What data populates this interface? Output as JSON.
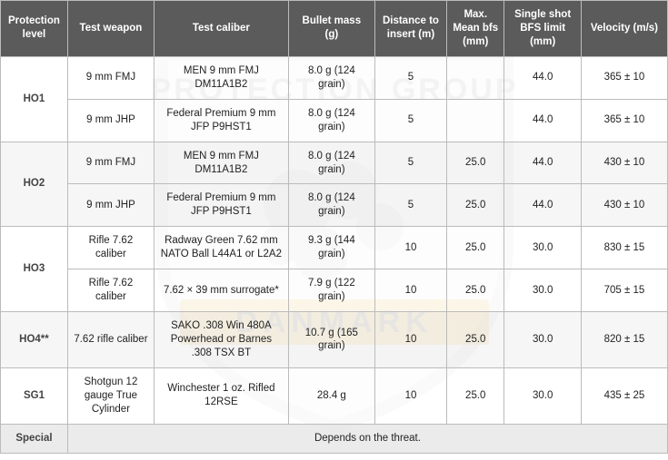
{
  "headers": {
    "protection_level": "Protection level",
    "test_weapon": "Test weapon",
    "test_caliber": "Test caliber",
    "bullet_mass": "Bullet mass (g)",
    "distance": "Distance to insert (m)",
    "max_mean_bfs": "Max. Mean bfs (mm)",
    "single_shot_bfs": "Single shot BFS limit (mm)",
    "velocity": "Velocity (m/s)"
  },
  "rows": [
    {
      "level": "HO1",
      "sub": [
        {
          "weapon": "9 mm FMJ",
          "caliber": "MEN 9 mm FMJ DM11A1B2",
          "mass": "8.0 g (124 grain)",
          "dist": "5",
          "bfs": "",
          "limit": "44.0",
          "vel": "365 ± 10"
        },
        {
          "weapon": "9 mm JHP",
          "caliber": "Federal Premium 9 mm JFP P9HST1",
          "mass": "8.0 g (124 grain)",
          "dist": "5",
          "bfs": "",
          "limit": "44.0",
          "vel": "365 ± 10"
        }
      ]
    },
    {
      "level": "HO2",
      "sub": [
        {
          "weapon": "9 mm FMJ",
          "caliber": "MEN 9 mm FMJ DM11A1B2",
          "mass": "8.0 g (124 grain)",
          "dist": "5",
          "bfs": "25.0",
          "limit": "44.0",
          "vel": "430 ± 10"
        },
        {
          "weapon": "9 mm JHP",
          "caliber": "Federal Premium 9 mm JFP P9HST1",
          "mass": "8.0 g (124 grain)",
          "dist": "5",
          "bfs": "25.0",
          "limit": "44.0",
          "vel": "430 ± 10"
        }
      ]
    },
    {
      "level": "HO3",
      "sub": [
        {
          "weapon": "Rifle 7.62 caliber",
          "caliber": "Radway Green 7.62 mm NATO Ball L44A1 or L2A2",
          "mass": "9.3 g (144 grain)",
          "dist": "10",
          "bfs": "25.0",
          "limit": "30.0",
          "vel": "830 ± 15"
        },
        {
          "weapon": "Rifle 7.62 caliber",
          "caliber": "7.62 × 39 mm surrogate*",
          "mass": "7.9 g (122 grain)",
          "dist": "10",
          "bfs": "25.0",
          "limit": "30.0",
          "vel": "705 ± 15"
        }
      ]
    },
    {
      "level": "HO4**",
      "sub": [
        {
          "weapon": "7.62 rifle caliber",
          "caliber": "SAKO .308 Win 480A Powerhead or Barnes .308 TSX BT",
          "mass": "10.7 g (165 grain)",
          "dist": "10",
          "bfs": "25.0",
          "limit": "30.0",
          "vel": "820 ± 15"
        }
      ]
    },
    {
      "level": "SG1",
      "sub": [
        {
          "weapon": "Shotgun 12 gauge True Cylinder",
          "caliber": "Winchester 1 oz. Rifled 12RSE",
          "mass": "28.4 g",
          "dist": "10",
          "bfs": "25.0",
          "limit": "30.0",
          "vel": "435 ± 25"
        }
      ]
    }
  ],
  "special": {
    "label": "Special",
    "text": "Depends on the threat."
  },
  "watermark": {
    "line1": "PROTECTION GROUP",
    "line2": "DANMARK",
    "shield_fill": "#f7f7f7",
    "shield_stroke": "#e8e8e8",
    "band_fill": "#f4d9a0",
    "text_fill": "#dcdcdc"
  },
  "colors": {
    "header_bg": "#5b5b5b",
    "header_fg": "#ffffff",
    "level_bg": "#e8e8e8",
    "border": "#bbbbbb"
  }
}
